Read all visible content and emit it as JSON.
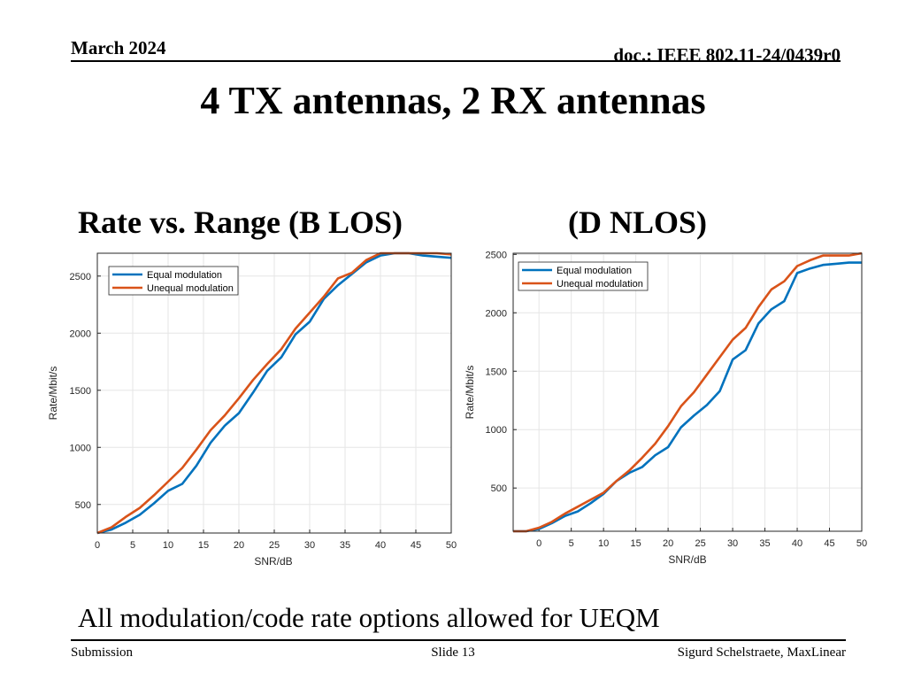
{
  "slide": {
    "date": "March 2024",
    "doc": "doc.: IEEE 802.11-24/0439r0",
    "title": "4 TX antennas, 2 RX antennas",
    "left_heading": "Rate vs. Range (B LOS)",
    "right_heading": "(D NLOS)",
    "footnote": "All modulation/code rate options allowed for UEQM",
    "footer_left": "Submission",
    "footer_center": "Slide 13",
    "footer_right": "Sigurd Schelstraete, MaxLinear"
  },
  "colors": {
    "equal": "#0072BD",
    "unequal": "#D95319",
    "grid": "#e6e6e6",
    "axis": "#262626"
  },
  "chart_data": [
    {
      "type": "line",
      "xlabel": "SNR/dB",
      "ylabel": "Rate/Mbit/s",
      "xlim": [
        0,
        50
      ],
      "ylim": [
        250,
        2700
      ],
      "xticks": [
        0,
        5,
        10,
        15,
        20,
        25,
        30,
        35,
        40,
        45,
        50
      ],
      "yticks": [
        500,
        1000,
        1500,
        2000,
        2500
      ],
      "grid": true,
      "legend": "top-left",
      "x": [
        0,
        2,
        4,
        6,
        8,
        10,
        12,
        14,
        16,
        18,
        20,
        22,
        24,
        26,
        28,
        30,
        32,
        34,
        36,
        38,
        40,
        42,
        44,
        46,
        48,
        50
      ],
      "series": [
        {
          "name": "Equal modulation",
          "values": [
            250,
            280,
            340,
            410,
            510,
            620,
            680,
            840,
            1040,
            1190,
            1300,
            1480,
            1670,
            1790,
            1990,
            2100,
            2300,
            2420,
            2520,
            2620,
            2680,
            2700,
            2700,
            2680,
            2670,
            2660
          ]
        },
        {
          "name": "Unequal modulation",
          "values": [
            250,
            300,
            390,
            470,
            580,
            700,
            820,
            980,
            1150,
            1280,
            1430,
            1590,
            1730,
            1860,
            2040,
            2180,
            2320,
            2480,
            2530,
            2640,
            2700,
            2700,
            2700,
            2700,
            2700,
            2690
          ]
        }
      ]
    },
    {
      "type": "line",
      "xlabel": "SNR/dB",
      "ylabel": "Rate/Mbit/s",
      "xlim": [
        -4,
        50
      ],
      "ylim": [
        130,
        2510
      ],
      "xticks": [
        0,
        5,
        10,
        15,
        20,
        25,
        30,
        35,
        40,
        45,
        50
      ],
      "yticks": [
        500,
        1000,
        1500,
        2000,
        2500
      ],
      "grid": true,
      "legend": "top-left",
      "x": [
        -4,
        -2,
        0,
        2,
        4,
        6,
        8,
        10,
        12,
        14,
        16,
        18,
        20,
        22,
        24,
        26,
        28,
        30,
        32,
        34,
        36,
        38,
        40,
        42,
        44,
        46,
        48,
        50
      ],
      "series": [
        {
          "name": "Equal modulation",
          "values": [
            130,
            130,
            150,
            200,
            260,
            300,
            370,
            450,
            560,
            630,
            680,
            780,
            850,
            1020,
            1120,
            1210,
            1330,
            1600,
            1680,
            1910,
            2030,
            2100,
            2340,
            2380,
            2410,
            2420,
            2430,
            2430
          ]
        },
        {
          "name": "Unequal modulation",
          "values": [
            130,
            130,
            160,
            210,
            280,
            340,
            400,
            460,
            560,
            650,
            760,
            880,
            1030,
            1200,
            1320,
            1470,
            1620,
            1770,
            1870,
            2050,
            2200,
            2270,
            2400,
            2450,
            2490,
            2490,
            2490,
            2510
          ]
        }
      ]
    }
  ]
}
